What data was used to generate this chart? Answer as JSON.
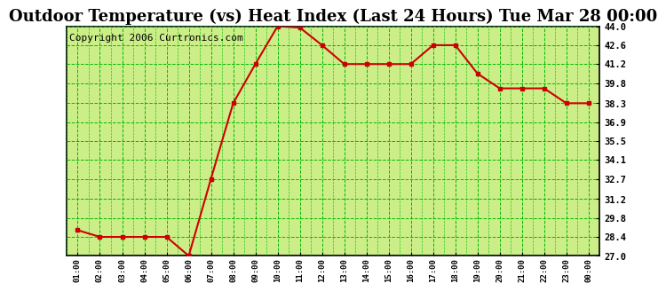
{
  "title": "Outdoor Temperature (vs) Heat Index (Last 24 Hours) Tue Mar 28 00:00",
  "copyright": "Copyright 2006 Curtronics.com",
  "x_labels": [
    "01:00",
    "02:00",
    "03:00",
    "04:00",
    "05:00",
    "06:00",
    "07:00",
    "08:00",
    "09:00",
    "10:00",
    "11:00",
    "12:00",
    "13:00",
    "14:00",
    "15:00",
    "16:00",
    "17:00",
    "18:00",
    "19:00",
    "20:00",
    "21:00",
    "22:00",
    "23:00",
    "00:00"
  ],
  "y_values": [
    28.9,
    28.4,
    28.4,
    28.4,
    28.4,
    27.0,
    32.7,
    38.3,
    41.2,
    44.0,
    43.9,
    42.6,
    41.2,
    41.2,
    41.2,
    41.2,
    42.6,
    42.6,
    40.5,
    39.4,
    39.4,
    39.4,
    38.3,
    38.3
  ],
  "y_ticks": [
    27.0,
    28.4,
    29.8,
    31.2,
    32.7,
    34.1,
    35.5,
    36.9,
    38.3,
    39.8,
    41.2,
    42.6,
    44.0
  ],
  "ylim": [
    27.0,
    44.0
  ],
  "line_color": "#cc0000",
  "marker_color": "#cc0000",
  "bg_color": "#ccee88",
  "fig_bg": "#ffffff",
  "grid_color": "#00bb00",
  "border_color": "#000000",
  "title_fontsize": 13,
  "copyright_fontsize": 8
}
